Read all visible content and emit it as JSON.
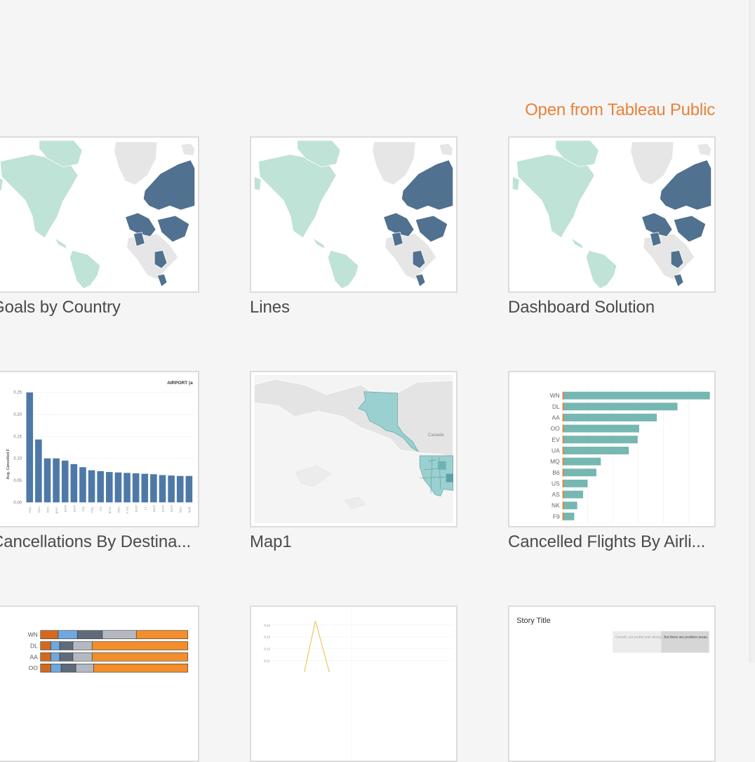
{
  "header": {
    "open_link": "Open from Tableau Public"
  },
  "workbooks": [
    {
      "title": "Goals by Country",
      "thumbnail": "world-map"
    },
    {
      "title": "Lines",
      "thumbnail": "world-map"
    },
    {
      "title": "Dashboard Solution",
      "thumbnail": "world-map"
    },
    {
      "title": "Cancellations By Destina...",
      "thumbnail": "bar-chart"
    },
    {
      "title": "Map1",
      "thumbnail": "us-map"
    },
    {
      "title": "Cancelled Flights By Airli...",
      "thumbnail": "hbar-chart"
    },
    {
      "title": "",
      "thumbnail": "stacked-bar-chart"
    },
    {
      "title": "",
      "thumbnail": "line-chart"
    },
    {
      "title": "",
      "thumbnail": "story"
    }
  ],
  "thumb_text": {
    "cancellations": {
      "header": "AIRPORT (a",
      "ylabel": "Avg. Cancelled F",
      "yticks": [
        "0.25",
        "0.20",
        "0.15",
        "0.10",
        "0.05",
        "0.00"
      ],
      "xticks": [
        "Airp..",
        "irpo..",
        "irpo..",
        "gion..",
        "rport",
        "rport",
        "nal..",
        "Airp..",
        "Air..",
        "al Ai..",
        "irpo..",
        "n Int..",
        "rport",
        "Lr..",
        "rport",
        "rport",
        "rport",
        "irpo..",
        "Will.."
      ]
    },
    "map1": {
      "label": "Canada"
    },
    "airlines": {
      "categories": [
        "WN",
        "DL",
        "AA",
        "OO",
        "EV",
        "UA",
        "MQ",
        "B6",
        "US",
        "AS",
        "NK",
        "F9"
      ]
    },
    "stacked": {
      "categories": [
        "WN",
        "DL",
        "AA",
        "OO"
      ]
    },
    "line": {
      "yticks": [
        "0.14",
        "0.13",
        "0.12",
        "0.11"
      ]
    },
    "story": {
      "title": "Story Title",
      "point1": "Overall, our profits look strong",
      "point2": "But there are problem areas."
    }
  },
  "chart_data": [
    {
      "type": "bar",
      "ylabel": "Avg. Cancelled F",
      "ylim": [
        0,
        0.25
      ],
      "categories": [
        "Airp..",
        "irpo..",
        "irpo..",
        "gion..",
        "rport",
        "rport",
        "nal..",
        "Airp..",
        "Air..",
        "al Ai..",
        "irpo..",
        "n Int..",
        "rport",
        "Lr..",
        "rport",
        "rport",
        "rport",
        "irpo..",
        "Will.."
      ],
      "values": [
        0.25,
        0.143,
        0.1,
        0.1,
        0.095,
        0.087,
        0.08,
        0.073,
        0.071,
        0.069,
        0.068,
        0.067,
        0.066,
        0.065,
        0.064,
        0.062,
        0.061,
        0.06,
        0.06
      ],
      "colors": {
        "bar": "#4e79a7"
      }
    },
    {
      "type": "bar",
      "orientation": "horizontal",
      "categories": [
        "WN",
        "DL",
        "AA",
        "OO",
        "EV",
        "UA",
        "MQ",
        "B6",
        "US",
        "AS",
        "NK",
        "F9"
      ],
      "values": [
        1.0,
        0.78,
        0.64,
        0.52,
        0.51,
        0.45,
        0.26,
        0.23,
        0.17,
        0.14,
        0.1,
        0.08
      ],
      "colors": {
        "bar": "#76b7b2",
        "accent": "#e8823a"
      }
    },
    {
      "type": "bar",
      "orientation": "horizontal",
      "stacked": true,
      "categories": [
        "WN",
        "DL",
        "AA",
        "OO"
      ],
      "series": [
        {
          "values": [
            0.12,
            0.07,
            0.07,
            0.07
          ]
        },
        {
          "values": [
            0.13,
            0.06,
            0.06,
            0.07
          ]
        },
        {
          "values": [
            0.17,
            0.09,
            0.09,
            0.1
          ]
        },
        {
          "values": [
            0.23,
            0.13,
            0.13,
            0.12
          ]
        },
        {
          "values": [
            0.35,
            0.65,
            0.65,
            0.64
          ]
        }
      ],
      "colors": [
        "#d2691e",
        "#6fa8dc",
        "#5f6b7a",
        "#b4b9c1",
        "#f28e2b"
      ]
    },
    {
      "type": "line",
      "yticks": [
        "0.14",
        "0.13",
        "0.12",
        "0.11"
      ],
      "colors": {
        "line": "#f0c75e"
      }
    }
  ],
  "colors": {
    "accent": "#e8823a",
    "map_teal": "#bfe3d6",
    "map_blue": "#50718f",
    "map_grey": "#e6e6e6",
    "map1_teal": "#9ad0cf"
  }
}
